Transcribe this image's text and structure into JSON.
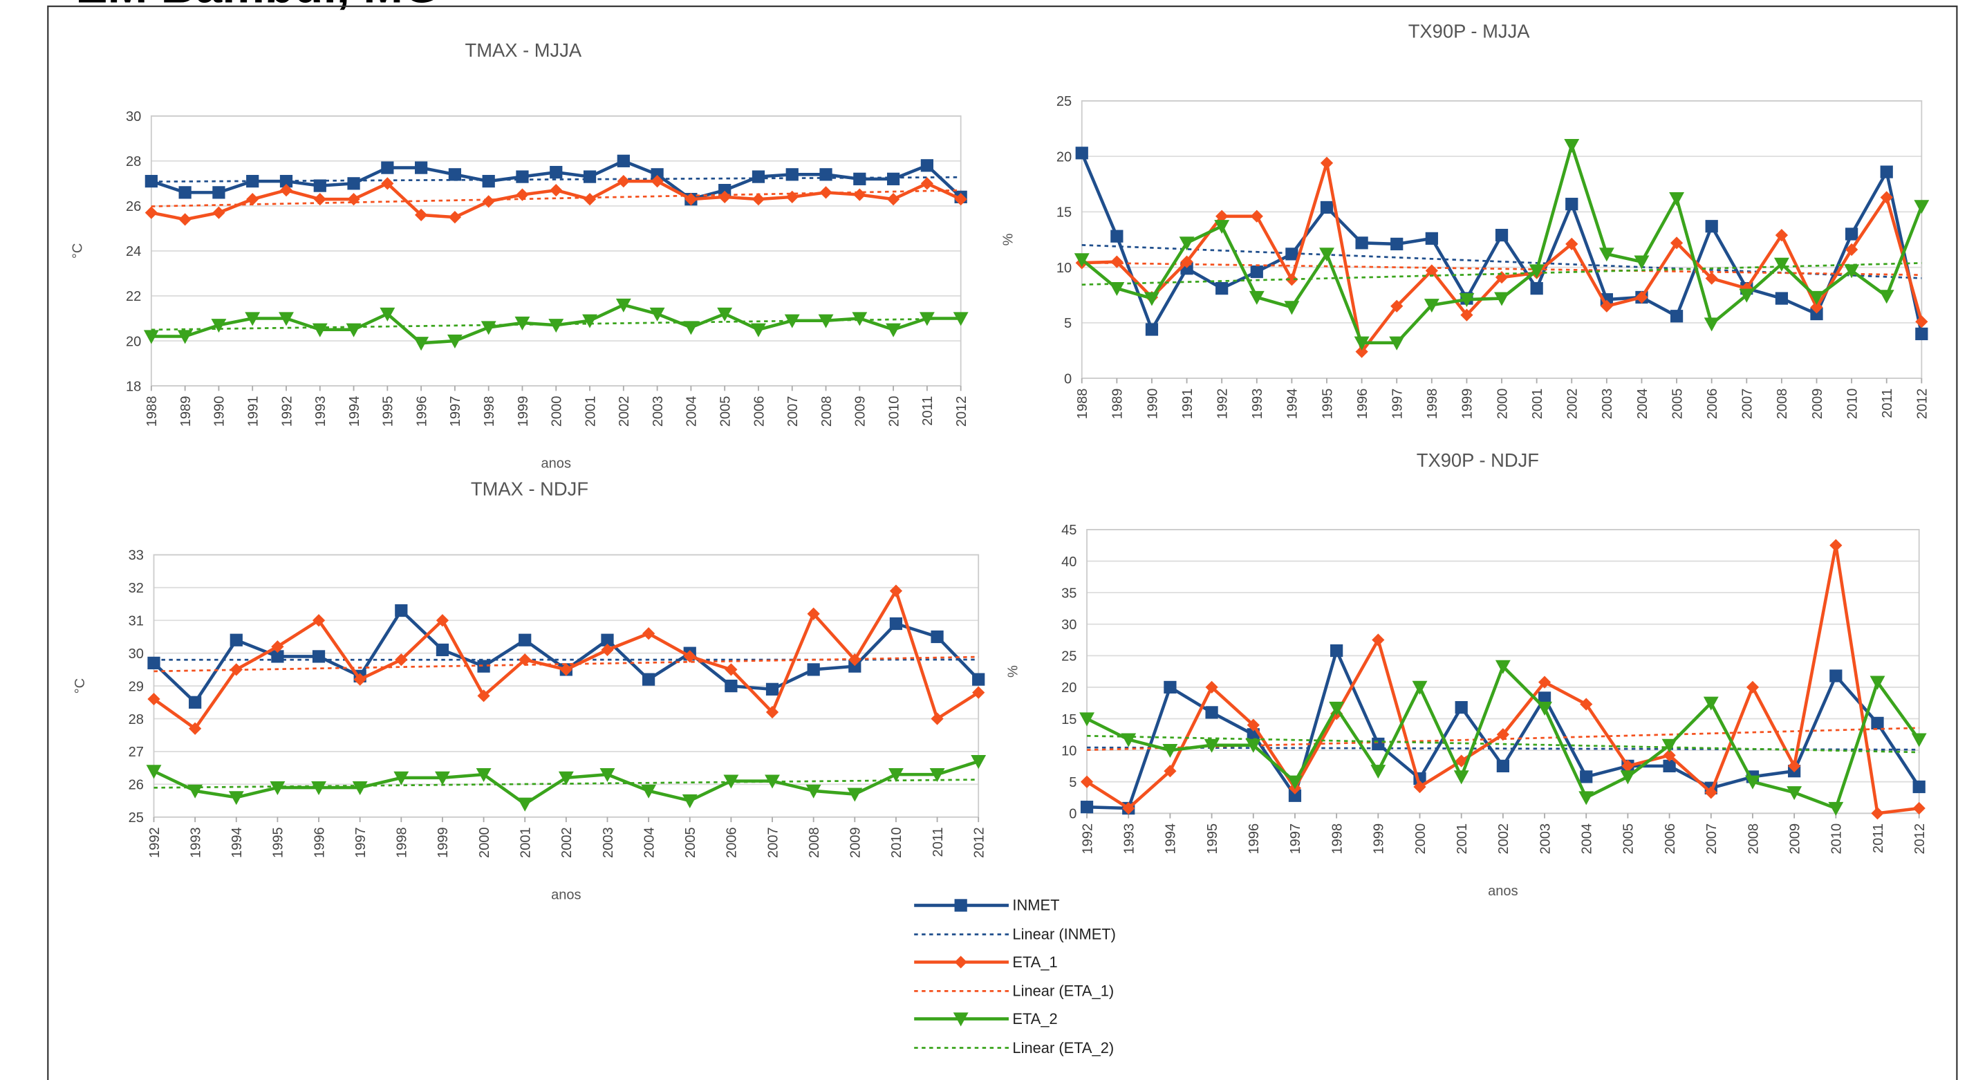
{
  "header": {
    "title": "EM Bambuí, MG"
  },
  "legend": [
    {
      "name": "INMET",
      "trend": "Linear (INMET)",
      "color": "#1f4e8c",
      "marker": "square"
    },
    {
      "name": "ETA_1",
      "trend": "Linear (ETA_1)",
      "color": "#f4511e",
      "marker": "diamond"
    },
    {
      "name": "ETA_2",
      "trend": "Linear (ETA_2)",
      "color": "#3aa41c",
      "marker": "triangle"
    }
  ],
  "chart_data": [
    {
      "type": "line",
      "title": "TMAX - MJJA",
      "y_label": "°C",
      "x_label": "anos",
      "categories": [
        "1988",
        "1989",
        "1990",
        "1991",
        "1992",
        "1993",
        "1994",
        "1995",
        "1996",
        "1997",
        "1998",
        "1999",
        "2000",
        "2001",
        "2002",
        "2003",
        "2004",
        "2005",
        "2006",
        "2007",
        "2008",
        "2009",
        "2010",
        "2011",
        "2012"
      ],
      "series": [
        {
          "values": [
            27.1,
            26.6,
            26.6,
            27.1,
            27.1,
            26.9,
            27.0,
            27.7,
            27.7,
            27.4,
            27.1,
            27.3,
            27.5,
            27.3,
            28.0,
            27.4,
            26.3,
            26.7,
            27.3,
            27.4,
            27.4,
            27.2,
            27.2,
            27.8,
            26.4
          ]
        },
        {
          "values": [
            25.7,
            25.4,
            25.7,
            26.3,
            26.7,
            26.3,
            26.3,
            27.0,
            25.6,
            25.5,
            26.2,
            26.5,
            26.7,
            26.3,
            27.1,
            27.1,
            26.3,
            26.4,
            26.3,
            26.4,
            26.6,
            26.5,
            26.3,
            27.0,
            26.3
          ]
        },
        {
          "values": [
            20.2,
            20.2,
            20.7,
            21.0,
            21.0,
            20.5,
            20.5,
            21.2,
            19.9,
            20.0,
            20.6,
            20.8,
            20.7,
            20.9,
            21.6,
            21.2,
            20.6,
            21.2,
            20.5,
            20.9,
            20.9,
            21.0,
            20.5,
            21.0,
            21.0
          ]
        }
      ],
      "ylim": [
        18,
        30
      ],
      "yticks": [
        18,
        20,
        22,
        24,
        26,
        28,
        30
      ],
      "grid": true
    },
    {
      "type": "line",
      "title": "TX90P - MJJA",
      "y_label": "%",
      "categories": [
        "1988",
        "1989",
        "1990",
        "1991",
        "1992",
        "1993",
        "1994",
        "1995",
        "1996",
        "1997",
        "1998",
        "1999",
        "2000",
        "2001",
        "2002",
        "2003",
        "2004",
        "2005",
        "2006",
        "2007",
        "2008",
        "2009",
        "2010",
        "2011",
        "2012"
      ],
      "series": [
        {
          "values": [
            20.3,
            12.8,
            4.4,
            9.9,
            8.1,
            9.6,
            11.2,
            15.4,
            12.2,
            12.1,
            12.6,
            7.2,
            12.9,
            8.1,
            15.7,
            7.1,
            7.3,
            5.6,
            13.7,
            8.1,
            7.2,
            5.8,
            13.0,
            18.6,
            4.0
          ]
        },
        {
          "values": [
            10.4,
            10.5,
            7.3,
            10.5,
            14.6,
            14.6,
            8.9,
            19.4,
            2.4,
            6.5,
            9.7,
            5.7,
            9.1,
            9.5,
            12.1,
            6.5,
            7.3,
            12.2,
            9.0,
            8.1,
            12.9,
            6.4,
            11.6,
            16.3,
            5.1
          ]
        },
        {
          "values": [
            10.7,
            8.1,
            7.2,
            12.2,
            13.7,
            7.3,
            6.4,
            11.2,
            3.2,
            3.2,
            6.6,
            7.1,
            7.2,
            9.7,
            21.0,
            11.2,
            10.5,
            16.2,
            4.9,
            7.5,
            10.3,
            7.3,
            9.7,
            7.4,
            15.5
          ]
        }
      ],
      "ylim": [
        0,
        25
      ],
      "yticks": [
        0,
        5,
        10,
        15,
        20,
        25
      ],
      "grid": true
    },
    {
      "type": "line",
      "title": "TMAX - NDJF",
      "y_label": "°C",
      "x_label": "anos",
      "categories": [
        "1992",
        "1993",
        "1994",
        "1995",
        "1996",
        "1997",
        "1998",
        "1999",
        "2000",
        "2001",
        "2002",
        "2003",
        "2004",
        "2005",
        "2006",
        "2007",
        "2008",
        "2009",
        "2010",
        "2011",
        "2012"
      ],
      "series": [
        {
          "values": [
            29.7,
            28.5,
            30.4,
            29.9,
            29.9,
            29.3,
            31.3,
            30.1,
            29.6,
            30.4,
            29.5,
            30.4,
            29.2,
            30.0,
            29.0,
            28.9,
            29.5,
            29.6,
            30.9,
            30.5,
            29.2
          ]
        },
        {
          "values": [
            28.6,
            27.7,
            29.5,
            30.2,
            31.0,
            29.2,
            29.8,
            31.0,
            28.7,
            29.8,
            29.5,
            30.1,
            30.6,
            29.9,
            29.5,
            28.2,
            31.2,
            29.8,
            31.9,
            28.0,
            28.8
          ]
        },
        {
          "values": [
            26.4,
            25.8,
            25.6,
            25.9,
            25.9,
            25.9,
            26.2,
            26.2,
            26.3,
            25.4,
            26.2,
            26.3,
            25.8,
            25.5,
            26.1,
            26.1,
            25.8,
            25.7,
            26.3,
            26.3,
            26.7
          ]
        }
      ],
      "ylim": [
        25,
        33
      ],
      "yticks": [
        25,
        26,
        27,
        28,
        29,
        30,
        31,
        32,
        33
      ],
      "grid": true
    },
    {
      "type": "line",
      "title": "TX90P - NDJF",
      "y_label": "%",
      "x_label": "anos",
      "categories": [
        "1992",
        "1993",
        "1994",
        "1995",
        "1996",
        "1997",
        "1998",
        "1999",
        "2000",
        "2001",
        "2002",
        "2003",
        "2004",
        "2005",
        "2006",
        "2007",
        "2008",
        "2009",
        "2010",
        "2011",
        "2012"
      ],
      "series": [
        {
          "values": [
            1,
            0.8,
            20,
            16,
            12.5,
            2.8,
            25.8,
            11,
            5.5,
            16.8,
            7.5,
            18.3,
            5.8,
            7.5,
            7.5,
            4,
            5.8,
            6.7,
            21.8,
            14.3,
            4.2
          ]
        },
        {
          "values": [
            5,
            0.8,
            6.7,
            20,
            14,
            4,
            15.8,
            27.5,
            4.2,
            8.3,
            12.5,
            20.8,
            17.3,
            7.5,
            9.2,
            3.3,
            20,
            7.5,
            42.5,
            0,
            0.8
          ]
        },
        {
          "values": [
            15,
            11.7,
            10,
            10.8,
            10.8,
            5,
            16.7,
            6.7,
            20,
            5.8,
            23.3,
            16.7,
            2.5,
            5.8,
            10.8,
            17.5,
            5,
            3.3,
            0.8,
            20.8,
            11.7
          ]
        }
      ],
      "ylim": [
        0,
        45
      ],
      "yticks": [
        0,
        5,
        10,
        15,
        20,
        25,
        30,
        35,
        40,
        45
      ],
      "grid": true
    }
  ]
}
